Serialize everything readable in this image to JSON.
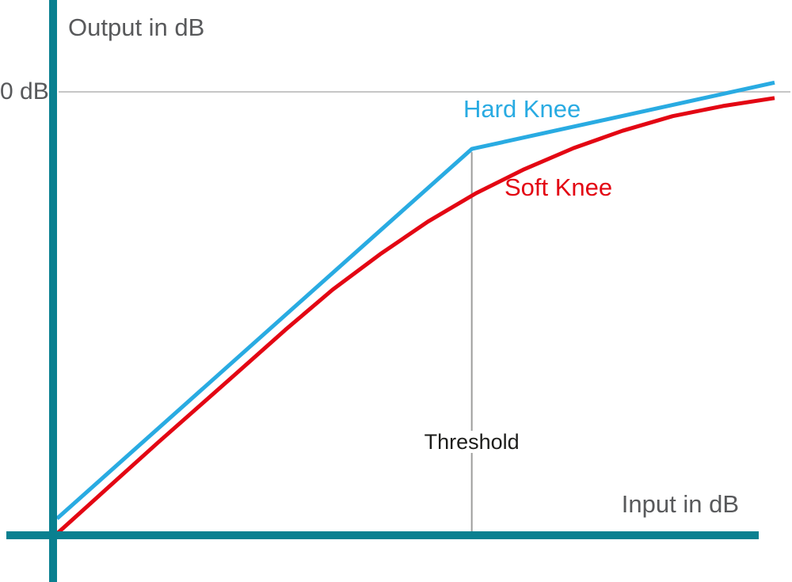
{
  "colors": {
    "axis": "#0a8090",
    "hard_knee": "#29abe2",
    "soft_knee": "#e30613",
    "zero_db_line": "#b3b3b3",
    "threshold_line": "#9d9d9c",
    "axis_text": "#58595b",
    "threshold_text": "#1d1d1b"
  },
  "chart_data": {
    "type": "line",
    "title": "",
    "xlabel": "Input in dB",
    "ylabel": "Output in dB",
    "legend": "inline labels next to curves",
    "grid": "single horizontal reference line at 0 dB output; no numeric tick labels on either axis",
    "y_reference": {
      "label": "0 dB",
      "y_frac": 1.0
    },
    "threshold": {
      "label": "Threshold",
      "x_frac": 0.578
    },
    "coordinate_note": "points_frac are fractions of the plotted span: x 0 = origin, x 1 = right end of curves; y 0 = input axis, y 1 = the 0 dB output line",
    "series": [
      {
        "name": "Hard Knee",
        "color": "#29abe2",
        "shape": "two straight segments meeting at the threshold (knee point)",
        "points_frac": [
          [
            0.0,
            0.036
          ],
          [
            0.578,
            0.871
          ],
          [
            1.0,
            1.021
          ]
        ]
      },
      {
        "name": "Soft Knee",
        "color": "#e30613",
        "shape": "straight below, smoothly rounded through the threshold region",
        "points_frac": [
          [
            0.0,
            0.002
          ],
          [
            0.141,
            0.208
          ],
          [
            0.241,
            0.351
          ],
          [
            0.318,
            0.462
          ],
          [
            0.384,
            0.553
          ],
          [
            0.45,
            0.633
          ],
          [
            0.517,
            0.707
          ],
          [
            0.584,
            0.771
          ],
          [
            0.651,
            0.825
          ],
          [
            0.72,
            0.873
          ],
          [
            0.788,
            0.912
          ],
          [
            0.858,
            0.945
          ],
          [
            0.928,
            0.968
          ],
          [
            1.0,
            0.986
          ]
        ]
      }
    ]
  }
}
